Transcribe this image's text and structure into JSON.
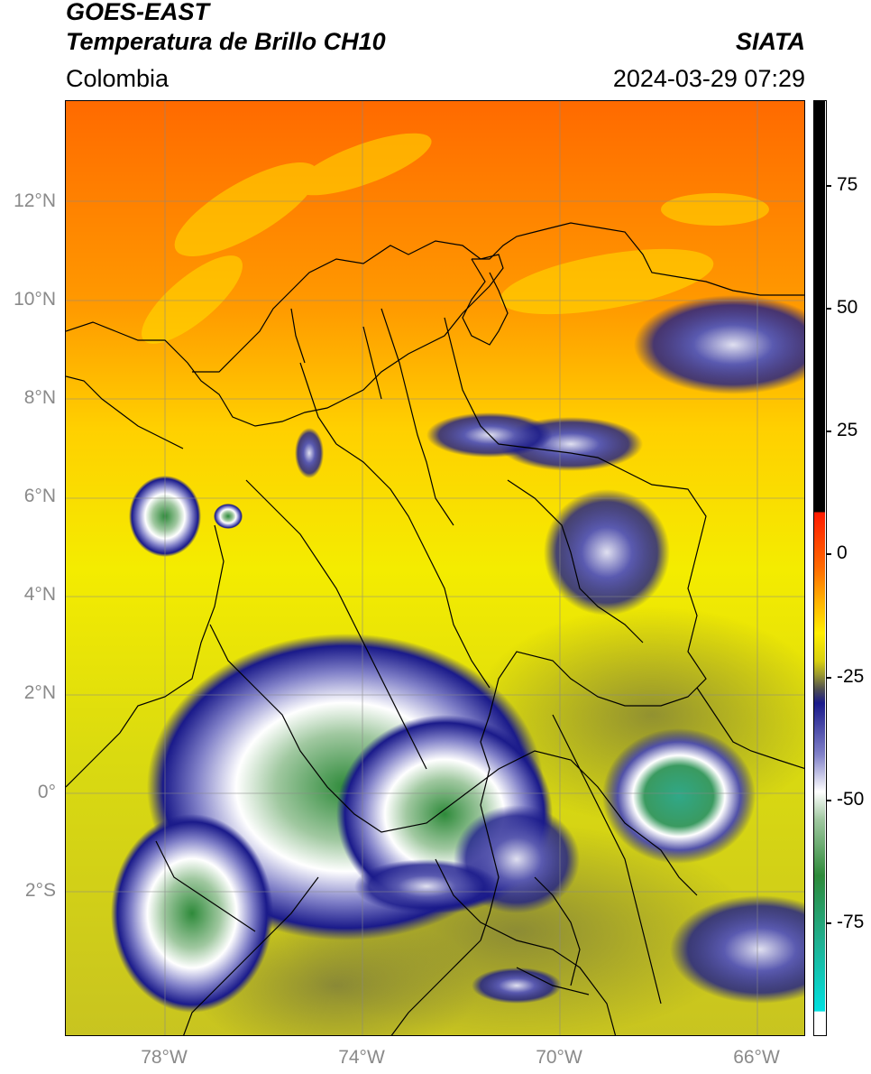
{
  "header": {
    "title_line1": "GOES-EAST",
    "title_line2": "Temperatura de Brillo CH10",
    "org": "SIATA",
    "region": "Colombia",
    "datetime": "2024-03-29 07:29"
  },
  "map": {
    "lat_labels": [
      "12°N",
      "10°N",
      "8°N",
      "6°N",
      "4°N",
      "2°N",
      "0°",
      "2°S"
    ],
    "lon_labels": [
      "78°W",
      "74°W",
      "70°W",
      "66°W"
    ]
  },
  "colorbar": {
    "labels": [
      "75",
      "50",
      "25",
      "0",
      "-25",
      "-50",
      "-75"
    ],
    "colors": {
      "warm": "#000000",
      "red": "#ff1a00",
      "orange": "#ff7a00",
      "yellow": "#ffee00",
      "olive": "#c8c020",
      "navy": "#1a1a8a",
      "white": "#ffffff",
      "green": "#3a8a30",
      "teal": "#20c0a0",
      "cyan": "#00e0e0"
    }
  }
}
